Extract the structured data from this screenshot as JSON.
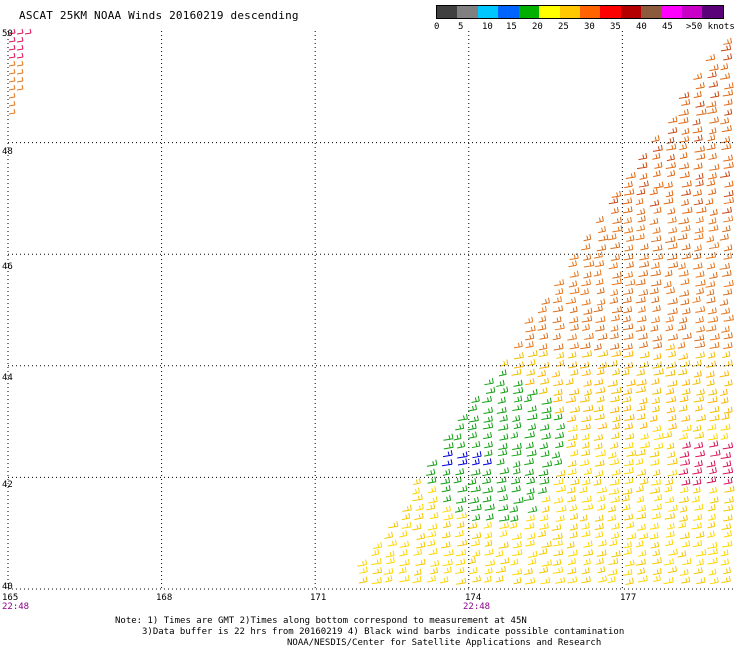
{
  "title": "ASCAT 25KM NOAA Winds 20160219 descending",
  "legend": {
    "labels": [
      "0",
      "5",
      "10",
      "15",
      "20",
      "25",
      "30",
      "35",
      "40",
      "45",
      ">50 knots"
    ],
    "colors": [
      "#404040",
      "#808080",
      "#00c8ff",
      "#0064ff",
      "#00b000",
      "#ffff00",
      "#ffc800",
      "#ff6400",
      "#ff0000",
      "#b40000",
      "#8c5a3c",
      "#ff00ff",
      "#c800c8",
      "#5a0078"
    ]
  },
  "map": {
    "lon_ticks": [
      "165",
      "168",
      "171",
      "174",
      "177"
    ],
    "lat_ticks": [
      "50",
      "48",
      "46",
      "44",
      "42",
      "40"
    ],
    "time_labels": [
      "22:48",
      "22:48"
    ],
    "lon_range": [
      165,
      179.2
    ],
    "lat_range": [
      40,
      50
    ],
    "grid": true
  },
  "notes": {
    "line1": "Note: 1) Times are GMT 2)Times along bottom correspond to measurement at 45N",
    "line2": "3)Data buffer is 22 hrs from 20160219 4) Black wind barbs indicate possible contamination",
    "line3": "NOAA/NESDIS/Center for Satellite Applications and Research"
  }
}
